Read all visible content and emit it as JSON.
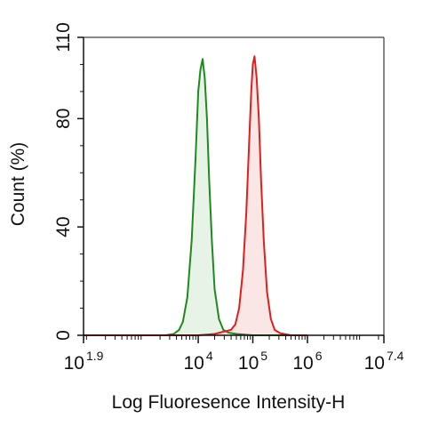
{
  "chart_data": {
    "type": "area",
    "title": "",
    "xlabel": "Log Fluoresence Intensity-H",
    "ylabel": "Count  (%)",
    "x_scale": "log10",
    "xlim": [
      1.9,
      7.4
    ],
    "ylim": [
      0,
      110
    ],
    "grid": false,
    "legend": "none",
    "x_ticks": [
      {
        "value": 1.9,
        "base": "10",
        "exp": "1.9"
      },
      {
        "value": 4,
        "base": "10",
        "exp": "4"
      },
      {
        "value": 5,
        "base": "10",
        "exp": "5"
      },
      {
        "value": 6,
        "base": "10",
        "exp": "6"
      },
      {
        "value": 7.4,
        "base": "10",
        "exp": "7.4"
      }
    ],
    "y_ticks": [
      0,
      40,
      80,
      110
    ],
    "series": [
      {
        "color": "#1e8a1e",
        "fill": "#e6f2e6",
        "x": [
          1.9,
          2.8,
          3.2,
          3.4,
          3.55,
          3.65,
          3.72,
          3.8,
          3.88,
          3.95,
          4.0,
          4.04,
          4.08,
          4.12,
          4.16,
          4.2,
          4.25,
          4.3,
          4.38,
          4.46,
          4.55,
          4.7,
          5.0,
          5.5,
          6.0
        ],
        "y": [
          0,
          0,
          0,
          0,
          0.5,
          2,
          5,
          14,
          35,
          65,
          90,
          98,
          102,
          95,
          80,
          58,
          35,
          17,
          6,
          2,
          1,
          0.5,
          0,
          0,
          0
        ]
      },
      {
        "color": "#e01e1e",
        "fill": "#fbe3e3",
        "x": [
          1.9,
          3.5,
          4.0,
          4.3,
          4.5,
          4.6,
          4.68,
          4.75,
          4.82,
          4.88,
          4.93,
          4.97,
          5.0,
          5.03,
          5.07,
          5.11,
          5.15,
          5.2,
          5.26,
          5.33,
          5.4,
          5.5,
          5.7,
          6.0
        ],
        "y": [
          0,
          0,
          0,
          0.5,
          1.5,
          2,
          4,
          10,
          24,
          45,
          70,
          90,
          100,
          103,
          95,
          80,
          58,
          35,
          16,
          6,
          2,
          0.8,
          0,
          0
        ]
      }
    ]
  }
}
